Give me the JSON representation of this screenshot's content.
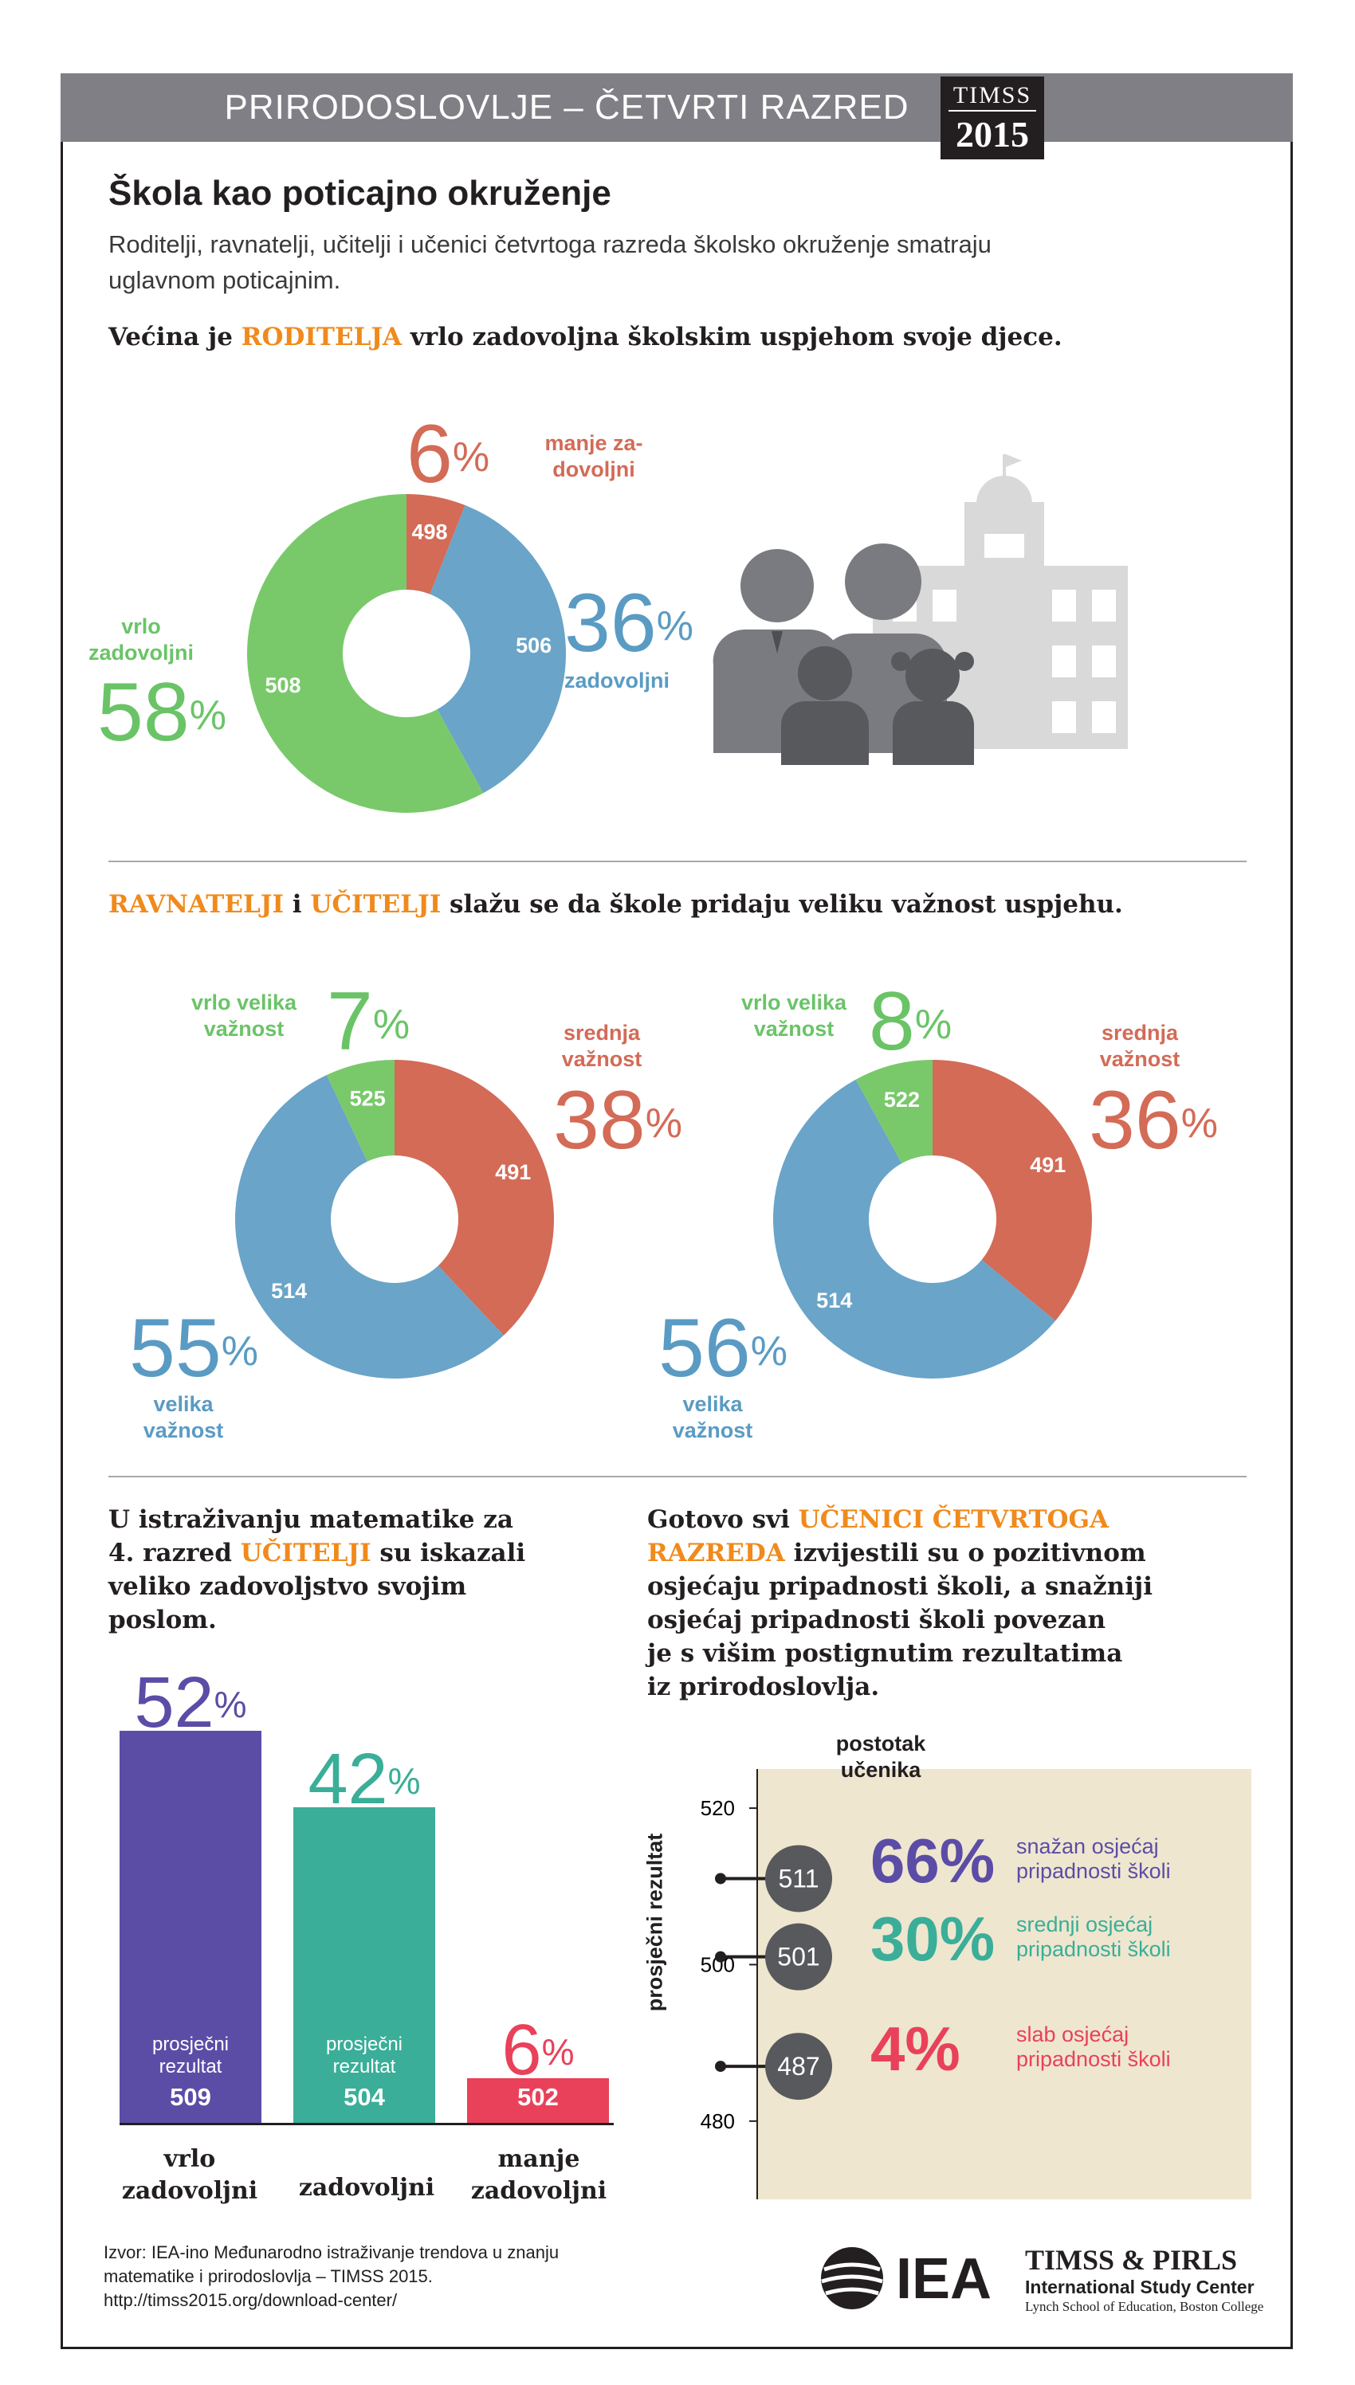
{
  "header": {
    "title": "PRIRODOSLOVLJE – ČETVRTI RAZRED",
    "logo_top": "TIMSS",
    "logo_year": "2015"
  },
  "page": {
    "title": "Škola kao poticajno okruženje",
    "intro_line1": "Roditelji, ravnatelji, učitelji i učenici četvrtoga razreda školsko okruženje smatraju",
    "intro_line2": "uglavnom poticajnim."
  },
  "parents": {
    "head_pre": "Većina je ",
    "head_hl": "RODITELJA",
    "head_post": " vrlo zadovoljna školskim uspjehom svoje djece.",
    "slices": [
      {
        "label": "manje zadovoljni",
        "label_l1": "manje za-",
        "label_l2": "dovoljni",
        "pct": "6",
        "pct_value": 6,
        "score": "498",
        "color": "#d36b57"
      },
      {
        "label": "zadovoljni",
        "label_l1": "zadovoljni",
        "label_l2": "",
        "pct": "36",
        "pct_value": 36,
        "score": "506",
        "color": "#6aa4c8"
      },
      {
        "label": "vrlo zadovoljni",
        "label_l1": "vrlo",
        "label_l2": "zadovoljni",
        "pct": "58",
        "pct_value": 58,
        "score": "508",
        "color": "#79c96b"
      }
    ]
  },
  "principals_teachers": {
    "head_hl1": "RAVNATELJI",
    "head_mid": " i ",
    "head_hl2": "UČITELJI",
    "head_post": " slažu se da škole pridaju veliku važnost uspjehu.",
    "label_very_high_l1": "vrlo velika",
    "label_very_high_l2": "važnost",
    "label_medium_l1": "srednja",
    "label_medium_l2": "važnost",
    "label_high_l1": "velika",
    "label_high_l2": "važnost",
    "principals": {
      "very_high_pct": "7",
      "very_high_score": "525",
      "medium_pct": "38",
      "medium_score": "491",
      "high_pct": "55",
      "high_score": "514"
    },
    "teachers": {
      "very_high_pct": "8",
      "very_high_score": "522",
      "medium_pct": "36",
      "medium_score": "491",
      "high_pct": "56",
      "high_score": "514"
    }
  },
  "job_satisfaction": {
    "head_l1": "U istraživanju matematike za",
    "head_l2_pre": "4. razred ",
    "head_l2_hl": "UČITELJI",
    "head_l2_post": " su iskazali",
    "head_l3": "veliko zadovoljstvo svojim",
    "head_l4": "poslom.",
    "caption_l1": "prosječni",
    "caption_l2": "rezultat",
    "bars": [
      {
        "cat_l1": "vrlo",
        "cat_l2": "zadovoljni",
        "pct": "52",
        "score": "509",
        "color": "#5b4da6"
      },
      {
        "cat_l1": "zadovoljni",
        "cat_l2": "",
        "pct": "42",
        "score": "504",
        "color": "#3aae98"
      },
      {
        "cat_l1": "manje",
        "cat_l2": "zadovoljni",
        "pct": "6",
        "score": "502",
        "color": "#e9415a"
      }
    ]
  },
  "chart_data": {
    "type": "scatter",
    "title": "",
    "xlabel": "",
    "ylabel": "prosječni rezultat",
    "ylim": [
      470,
      525
    ],
    "yticks": [
      480,
      500,
      520
    ],
    "column_label_l1": "postotak",
    "column_label_l2": "učenika",
    "points": [
      {
        "y": 511,
        "pct": "66%",
        "label_l1": "snažan osjećaj",
        "label_l2": "pripadnosti školi",
        "pct_color": "#5b4da6",
        "label_color": "#5b4da6"
      },
      {
        "y": 501,
        "pct": "30%",
        "label_l1": "srednji osjećaj",
        "label_l2": "pripadnosti školi",
        "pct_color": "#3aae98",
        "label_color": "#3aae98"
      },
      {
        "y": 487,
        "pct": "4%",
        "label_l1": "slab osjećaj",
        "label_l2": "pripadnosti školi",
        "pct_color": "#e9415a",
        "label_color": "#e9415a"
      }
    ]
  },
  "belonging": {
    "head_l1_pre": "Gotovo svi ",
    "head_l1_hl": "UČENICI ČETVRTOGA",
    "head_l2_hl": "RAZREDA",
    "head_l2_post": " izvijestili su o pozitivnom",
    "head_l3": "osjećaju pripadnosti školi, a snažniji",
    "head_l4": "osjećaj pripadnosti školi povezan",
    "head_l5": "je s višim postignutim rezultatima",
    "head_l6": "iz prirodoslovlja."
  },
  "footer": {
    "source_l1": "Izvor: IEA-ino Međunarodno istraživanje trendova u znanju",
    "source_l2": "matematike i prirodoslovlja – TIMSS 2015.",
    "source_l3": "http://timss2015.org/download-center/",
    "iea": "IEA",
    "brand_l1": "TIMSS & PIRLS",
    "brand_l2": "International Study Center",
    "brand_l3": "Lynch School of Education, Boston College"
  },
  "colors": {
    "orange": "#f08a1c",
    "grey_bar": "#7f7f85",
    "beige": "#efe6cf"
  }
}
